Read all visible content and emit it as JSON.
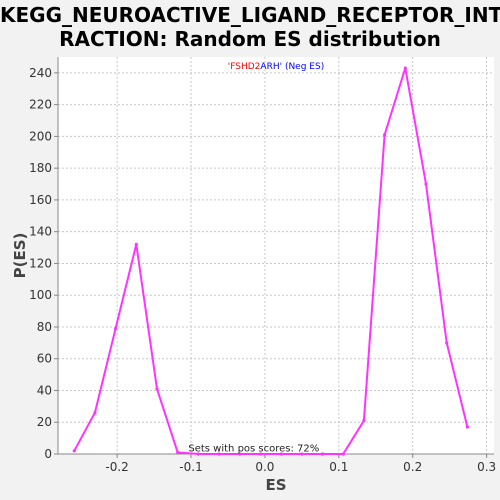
{
  "title_line1": "KEGG_NEUROACTIVE_LIGAND_RECEPTOR_INTE",
  "title_line2": "RACTION: Random ES distribution",
  "chart_data": {
    "type": "line",
    "title": "KEGG_NEUROACTIVE_LIGAND_RECEPTOR_INTERACTION: Random ES distribution",
    "xlabel": "ES",
    "ylabel": "P(ES)",
    "xlim": [
      -0.28,
      0.31
    ],
    "ylim": [
      0,
      250
    ],
    "xticks": [
      -0.2,
      -0.1,
      0.0,
      0.1,
      0.2,
      0.3
    ],
    "xtick_labels": [
      "-0.2",
      "-0.1",
      "0.0",
      "0.1",
      "0.2",
      "0.3"
    ],
    "yticks": [
      0,
      20,
      40,
      60,
      80,
      100,
      120,
      140,
      160,
      180,
      200,
      220,
      240
    ],
    "grid": true,
    "legend": {
      "placement": "top-center",
      "parts": [
        {
          "text": "'FSHD2",
          "color": "#ff0000"
        },
        {
          "text": "ARH'",
          "color": "#0000ff"
        },
        {
          "text": " (Neg ES)",
          "color": "#0000ff"
        }
      ]
    },
    "annotation": "Sets with pos scores: 72%",
    "series": [
      {
        "color": "#ff33ff",
        "x": [
          -0.258,
          -0.23,
          -0.202,
          -0.174,
          -0.146,
          -0.118,
          -0.09,
          -0.062,
          -0.034,
          -0.006,
          0.022,
          0.05,
          0.078,
          0.106,
          0.134,
          0.162,
          0.19,
          0.218,
          0.246,
          0.274
        ],
        "y": [
          2,
          26,
          79,
          132,
          41,
          1,
          0,
          0,
          0,
          0,
          0,
          0,
          0,
          0,
          21,
          201,
          243,
          170,
          70,
          17
        ]
      }
    ]
  }
}
